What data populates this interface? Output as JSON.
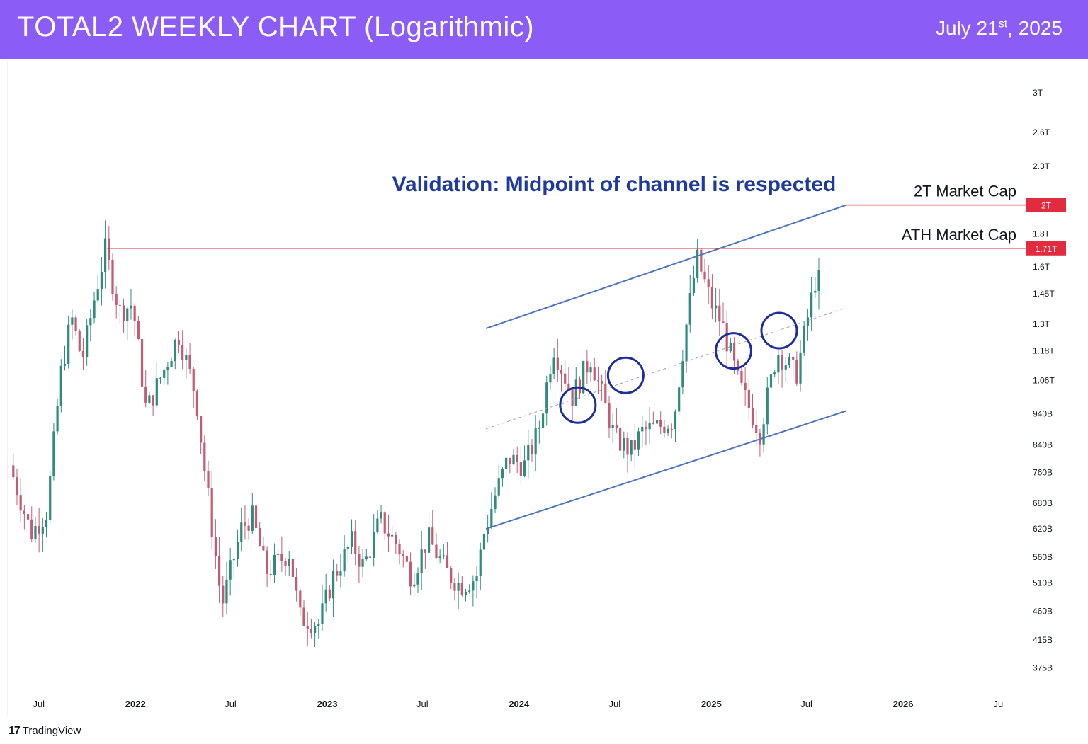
{
  "header": {
    "title": "TOTAL2 WEEKLY CHART (Logarithmic)",
    "date_main": "July 21",
    "date_suffix": "st",
    "date_year": ", 2025"
  },
  "branding": {
    "logo_text": "TradingView"
  },
  "colors": {
    "header_bg": "#8c5cf6",
    "up_candle": "#2e8b7e",
    "down_candle": "#c45b72",
    "channel_line": "#4a74c4",
    "resistance_line": "#d0313f",
    "circle": "#1e2d9e",
    "annotation_text": "#1e3a9e"
  },
  "chart_data": {
    "type": "candlestick",
    "title": "TOTAL2 WEEKLY CHART (Logarithmic)",
    "scale": "log",
    "ylim": [
      345,
      3300
    ],
    "y_unit": "USD market cap (B = billion, T = trillion)",
    "y_ticks": [
      {
        "label": "3T",
        "value": 3000
      },
      {
        "label": "2.6T",
        "value": 2600
      },
      {
        "label": "2.3T",
        "value": 2300
      },
      {
        "label": "1.8T",
        "value": 1800
      },
      {
        "label": "1.6T",
        "value": 1600
      },
      {
        "label": "1.45T",
        "value": 1450
      },
      {
        "label": "1.3T",
        "value": 1300
      },
      {
        "label": "1.18T",
        "value": 1180
      },
      {
        "label": "1.06T",
        "value": 1060
      },
      {
        "label": "940B",
        "value": 940
      },
      {
        "label": "840B",
        "value": 840
      },
      {
        "label": "760B",
        "value": 760
      },
      {
        "label": "680B",
        "value": 680
      },
      {
        "label": "620B",
        "value": 620
      },
      {
        "label": "560B",
        "value": 560
      },
      {
        "label": "510B",
        "value": 510
      },
      {
        "label": "460B",
        "value": 460
      },
      {
        "label": "415B",
        "value": 415
      },
      {
        "label": "375B",
        "value": 375
      }
    ],
    "x_ticks": [
      {
        "label": "Jul",
        "date": "2021-07-01",
        "bold": false
      },
      {
        "label": "2022",
        "date": "2022-01-01",
        "bold": true
      },
      {
        "label": "Jul",
        "date": "2022-07-01",
        "bold": false
      },
      {
        "label": "2023",
        "date": "2023-01-01",
        "bold": true
      },
      {
        "label": "Jul",
        "date": "2023-07-01",
        "bold": false
      },
      {
        "label": "2024",
        "date": "2024-01-01",
        "bold": true
      },
      {
        "label": "Jul",
        "date": "2024-07-01",
        "bold": false
      },
      {
        "label": "2025",
        "date": "2025-01-01",
        "bold": true
      },
      {
        "label": "Jul",
        "date": "2025-07-01",
        "bold": false
      },
      {
        "label": "2026",
        "date": "2026-01-01",
        "bold": true
      },
      {
        "label": "Ju",
        "date": "2026-07-01",
        "bold": false
      }
    ],
    "price_path": [
      [
        "2021-05-10",
        780
      ],
      [
        "2021-06-20",
        610
      ],
      [
        "2021-07-20",
        660
      ],
      [
        "2021-08-15",
        1080
      ],
      [
        "2021-09-05",
        1330
      ],
      [
        "2021-09-25",
        1140
      ],
      [
        "2021-10-20",
        1450
      ],
      [
        "2021-11-08",
        1700
      ],
      [
        "2021-12-05",
        1360
      ],
      [
        "2021-12-30",
        1400
      ],
      [
        "2022-01-25",
        950
      ],
      [
        "2022-03-28",
        1250
      ],
      [
        "2022-04-30",
        1000
      ],
      [
        "2022-05-15",
        780
      ],
      [
        "2022-06-18",
        470
      ],
      [
        "2022-07-25",
        620
      ],
      [
        "2022-08-14",
        650
      ],
      [
        "2022-09-10",
        530
      ],
      [
        "2022-10-25",
        570
      ],
      [
        "2022-11-13",
        450
      ],
      [
        "2022-12-20",
        440
      ],
      [
        "2023-01-15",
        520
      ],
      [
        "2023-02-20",
        590
      ],
      [
        "2023-03-15",
        540
      ],
      [
        "2023-04-15",
        640
      ],
      [
        "2023-05-20",
        580
      ],
      [
        "2023-06-15",
        520
      ],
      [
        "2023-07-15",
        600
      ],
      [
        "2023-08-20",
        530
      ],
      [
        "2023-09-15",
        505
      ],
      [
        "2023-10-15",
        520
      ],
      [
        "2023-10-30",
        610
      ],
      [
        "2023-11-20",
        700
      ],
      [
        "2023-12-15",
        800
      ],
      [
        "2024-01-15",
        780
      ],
      [
        "2024-02-10",
        880
      ],
      [
        "2024-03-10",
        1200
      ],
      [
        "2024-04-15",
        1000
      ],
      [
        "2024-05-20",
        1150
      ],
      [
        "2024-07-05",
        860
      ],
      [
        "2024-08-05",
        820
      ],
      [
        "2024-08-25",
        880
      ],
      [
        "2024-10-01",
        900
      ],
      [
        "2024-10-25",
        920
      ],
      [
        "2024-11-15",
        1250
      ],
      [
        "2024-12-08",
        1650
      ],
      [
        "2025-01-05",
        1400
      ],
      [
        "2025-01-25",
        1300
      ],
      [
        "2025-02-25",
        1050
      ],
      [
        "2025-04-07",
        880
      ],
      [
        "2025-05-10",
        1180
      ],
      [
        "2025-06-15",
        1080
      ],
      [
        "2025-07-21",
        1520
      ]
    ],
    "horizontal_levels": [
      {
        "label": "2T Market Cap",
        "value": 2000,
        "price_label": "2T",
        "start": "2025-09-15"
      },
      {
        "label": "ATH Market Cap",
        "value": 1710,
        "price_label": "1.71T",
        "start": "2021-11-08"
      }
    ],
    "channel": {
      "upper": {
        "start": [
          "2023-10-30",
          1280
        ],
        "end": [
          "2025-09-15",
          2000
        ]
      },
      "midline": {
        "start": [
          "2023-10-30",
          890
        ],
        "end": [
          "2025-09-15",
          1380
        ]
      },
      "lower": {
        "start": [
          "2023-10-30",
          620
        ],
        "end": [
          "2025-09-15",
          950
        ]
      }
    },
    "circles": [
      {
        "date": "2024-04-22",
        "value": 970
      },
      {
        "date": "2024-07-22",
        "value": 1080
      },
      {
        "date": "2025-02-12",
        "value": 1180
      },
      {
        "date": "2025-05-10",
        "value": 1270
      }
    ],
    "annotations": [
      {
        "text": "Validation: Midpoint of channel is respected"
      }
    ]
  }
}
